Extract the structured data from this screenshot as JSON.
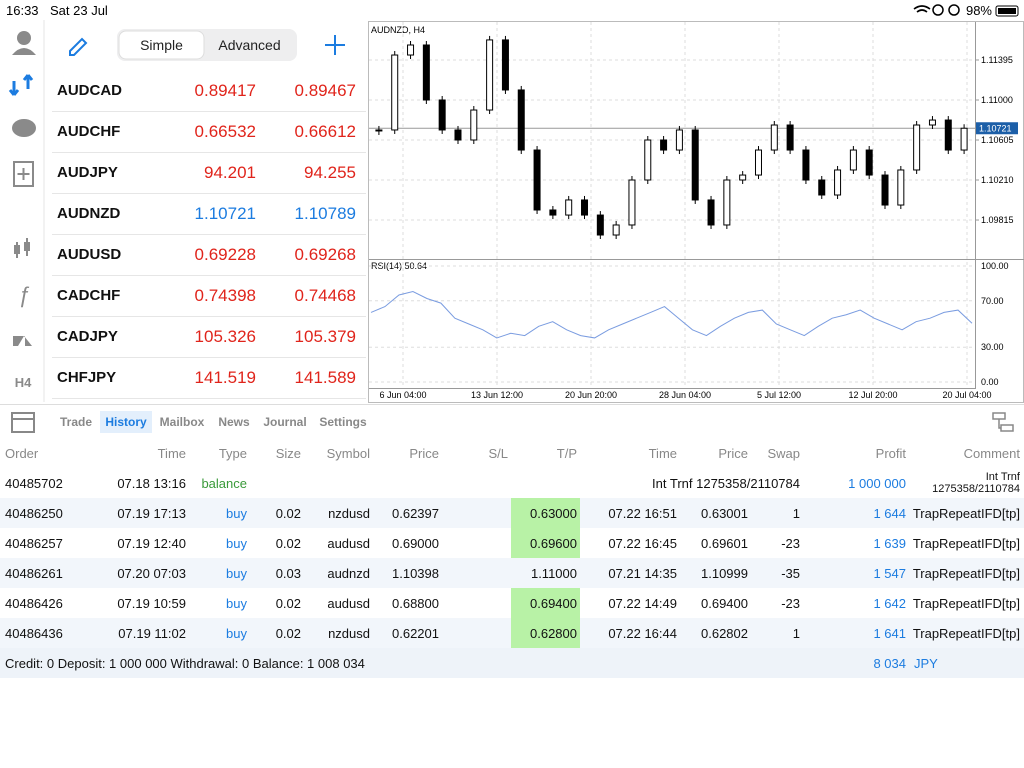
{
  "status_bar": {
    "time": "16:33",
    "date": "Sat 23 Jul",
    "battery": "98%"
  },
  "toolbar": {
    "tabs": [
      "Simple",
      "Advanced"
    ],
    "active": 0
  },
  "sidebar": {
    "timeframe": "H4"
  },
  "watchlist": [
    {
      "symbol": "AUDCAD",
      "bid": "0.89417",
      "ask": "0.89467",
      "color": "#e0241b"
    },
    {
      "symbol": "AUDCHF",
      "bid": "0.66532",
      "ask": "0.66612",
      "color": "#e0241b"
    },
    {
      "symbol": "AUDJPY",
      "bid": "94.201",
      "ask": "94.255",
      "color": "#e0241b"
    },
    {
      "symbol": "AUDNZD",
      "bid": "1.10721",
      "ask": "1.10789",
      "color": "#1c7ce0"
    },
    {
      "symbol": "AUDUSD",
      "bid": "0.69228",
      "ask": "0.69268",
      "color": "#e0241b"
    },
    {
      "symbol": "CADCHF",
      "bid": "0.74398",
      "ask": "0.74468",
      "color": "#e0241b"
    },
    {
      "symbol": "CADJPY",
      "bid": "105.326",
      "ask": "105.379",
      "color": "#e0241b"
    },
    {
      "symbol": "CHFJPY",
      "bid": "141.519",
      "ask": "141.589",
      "color": "#e0241b"
    }
  ],
  "chart_data": {
    "type": "candlestick",
    "title": "AUDNZD, H4",
    "closes": [
      1.10704,
      1.11444,
      1.11543,
      1.11,
      1.10704,
      1.10605,
      1.10901,
      1.11593,
      1.11099,
      1.10506,
      1.09914,
      1.09864,
      1.10013,
      1.09864,
      1.09667,
      1.09766,
      1.1021,
      1.10605,
      1.10506,
      1.10704,
      1.10013,
      1.09766,
      1.1021,
      1.10259,
      1.10506,
      1.10753,
      1.10506,
      1.1021,
      1.10062,
      1.10309,
      1.10506,
      1.10259,
      1.09963,
      1.10309,
      1.10753,
      1.10802,
      1.10506,
      1.10721
    ],
    "ylim": [
      1.0944,
      1.1177
    ],
    "yticks": [
      {
        "value": 1.11395,
        "label": "1.11395"
      },
      {
        "value": 1.11,
        "label": "1.11000"
      },
      {
        "value": 1.10605,
        "label": "1.10605"
      },
      {
        "value": 1.1021,
        "label": "1.10210"
      },
      {
        "value": 1.09815,
        "label": "1.09815"
      }
    ],
    "current": {
      "value": 1.10721,
      "label": "1.10721"
    },
    "xtick_labels": [
      "6 Jun 04:00",
      "13 Jun 12:00",
      "20 Jun 20:00",
      "28 Jun 04:00",
      "5 Jul 12:00",
      "12 Jul 20:00",
      "20 Jul 04:00"
    ],
    "grid": true,
    "up_color": "#ffffff",
    "down_color": "#000000"
  },
  "rsi": {
    "type": "line",
    "title": "RSI(14) 50.64",
    "values": [
      60,
      65,
      75,
      78,
      72,
      68,
      55,
      50,
      45,
      38,
      42,
      40,
      48,
      52,
      45,
      40,
      38,
      45,
      50,
      55,
      60,
      65,
      55,
      45,
      40,
      48,
      55,
      60,
      62,
      50,
      45,
      40,
      48,
      55,
      58,
      62,
      55,
      50,
      45,
      52,
      55,
      60,
      62,
      50.64
    ],
    "ylim": [
      0,
      100
    ],
    "yticks": [
      {
        "value": 100,
        "label": "100.00"
      },
      {
        "value": 70,
        "label": "70.00"
      },
      {
        "value": 30,
        "label": "30.00"
      },
      {
        "value": 0,
        "label": "0.00"
      }
    ],
    "color": "#7a9ce0"
  },
  "tabs": {
    "items": [
      "Trade",
      "History",
      "Mailbox",
      "News",
      "Journal",
      "Settings"
    ],
    "active": 1
  },
  "table": {
    "columns": [
      "Order",
      "Time",
      "Type",
      "Size",
      "Symbol",
      "Price",
      "S/L",
      "T/P",
      "Time",
      "Price",
      "Swap",
      "Profit",
      "Comment"
    ],
    "rows": [
      {
        "cells": [
          "40485702",
          "07.18 13:16",
          "balance",
          null,
          null,
          null,
          null,
          null,
          null,
          null,
          "Int Trnf 1275358/2110784",
          "1 000 000",
          "Int Trnf 1275358/2110784"
        ],
        "type_color": "#3a9a3a",
        "tp_color": null
      },
      {
        "cells": [
          "40486250",
          "07.19 17:13",
          "buy",
          "0.02",
          "nzdusd",
          "0.62397",
          null,
          "0.63000",
          "07.22 16:51",
          "0.63001",
          "1",
          "1 644",
          "TrapRepeatIFD[tp]"
        ],
        "type_color": "#1c7ce0",
        "tp_color": "#b8f2a6"
      },
      {
        "cells": [
          "40486257",
          "07.19 12:40",
          "buy",
          "0.02",
          "audusd",
          "0.69000",
          null,
          "0.69600",
          "07.22 16:45",
          "0.69601",
          "-23",
          "1 639",
          "TrapRepeatIFD[tp]"
        ],
        "type_color": "#1c7ce0",
        "tp_color": "#b8f2a6"
      },
      {
        "cells": [
          "40486261",
          "07.20 07:03",
          "buy",
          "0.03",
          "audnzd",
          "1.10398",
          null,
          "1.11000",
          "07.21 14:35",
          "1.10999",
          "-35",
          "1 547",
          "TrapRepeatIFD[tp]"
        ],
        "type_color": "#1c7ce0",
        "tp_color": null
      },
      {
        "cells": [
          "40486426",
          "07.19 10:59",
          "buy",
          "0.02",
          "audusd",
          "0.68800",
          null,
          "0.69400",
          "07.22 14:49",
          "0.69400",
          "-23",
          "1 642",
          "TrapRepeatIFD[tp]"
        ],
        "type_color": "#1c7ce0",
        "tp_color": "#b8f2a6"
      },
      {
        "cells": [
          "40486436",
          "07.19 11:02",
          "buy",
          "0.02",
          "nzdusd",
          "0.62201",
          null,
          "0.62800",
          "07.22 16:44",
          "0.62802",
          "1",
          "1 641",
          "TrapRepeatIFD[tp]"
        ],
        "type_color": "#1c7ce0",
        "tp_color": "#b8f2a6"
      }
    ]
  },
  "footer": {
    "summary": "Credit: 0 Deposit: 1 000 000 Withdrawal: 0 Balance: 1 008 034",
    "profit": "8 034",
    "currency": "JPY"
  }
}
